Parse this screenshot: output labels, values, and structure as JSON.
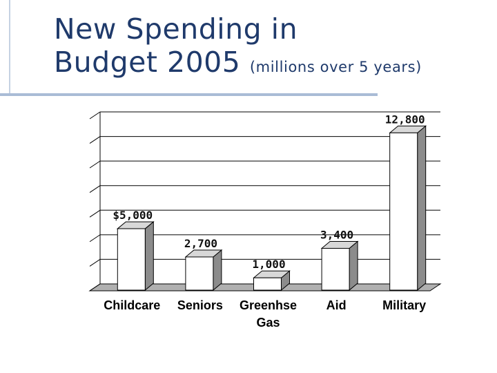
{
  "title": {
    "line1": "New Spending in",
    "line2": "Budget 2005",
    "subtitle": "(millions over 5 years)"
  },
  "chart_data": {
    "type": "bar",
    "title": "New Spending in Budget 2005 (millions over 5 years)",
    "categories": [
      [
        "Childcare"
      ],
      [
        "Seniors"
      ],
      [
        "Greenhse",
        "Gas"
      ],
      [
        "Aid"
      ],
      [
        "Military"
      ]
    ],
    "values": [
      5000,
      2700,
      1000,
      3400,
      12800
    ],
    "data_labels": [
      "$5,000",
      "2,700",
      "1,000",
      "3,400",
      "12,800"
    ],
    "ylim": [
      0,
      14000
    ],
    "gridlines": true,
    "style_3d": true,
    "colors": {
      "bar_front": "#ffffff",
      "bar_side": "#8c8c8c",
      "grid": "#000000"
    }
  }
}
